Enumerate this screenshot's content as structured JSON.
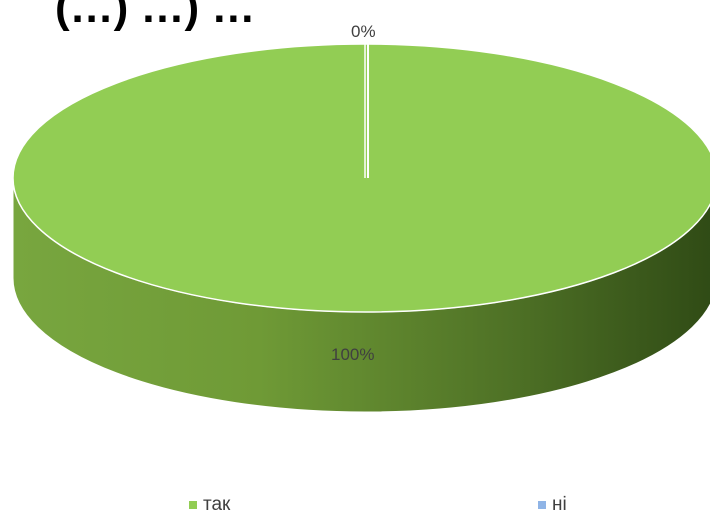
{
  "chart_data": {
    "type": "pie",
    "title": "(…) …) …",
    "three_d": true,
    "categories": [
      "так",
      "ні"
    ],
    "values": [
      100,
      0
    ],
    "data_labels": [
      "100%",
      "0%"
    ],
    "colors": {
      "так": "#92cd54",
      "ні": "#8fb4e6"
    },
    "legend_placement": "bottom"
  }
}
